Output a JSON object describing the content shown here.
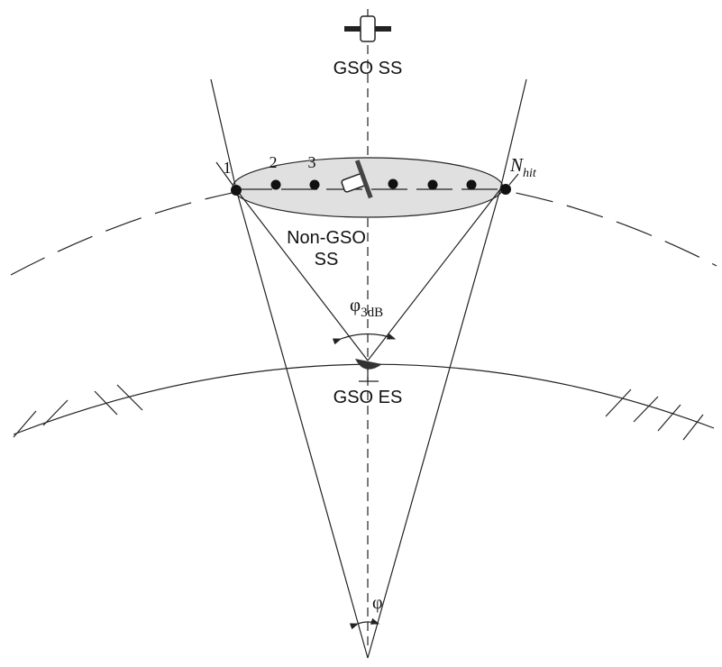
{
  "labels": {
    "gso_ss": "GSO SS",
    "position_1": "1",
    "position_2": "2",
    "position_3": "3",
    "n_hit": {
      "main": "N",
      "sub": "hit"
    },
    "non_gso_line1": "Non-GSO",
    "non_gso_line2": "SS",
    "phi_3db": {
      "main": "φ",
      "sub": "3dB"
    },
    "gso_es": "GSO ES",
    "phi": "φ"
  }
}
